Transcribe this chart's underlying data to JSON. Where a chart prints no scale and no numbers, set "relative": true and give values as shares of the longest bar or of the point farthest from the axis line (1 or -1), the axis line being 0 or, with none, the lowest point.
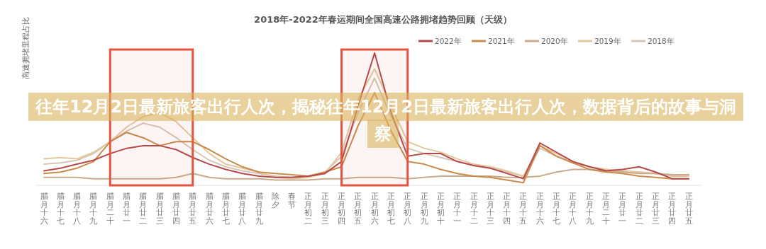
{
  "chart_data": {
    "type": "line",
    "title": "2018年-2022年春运期间全国高速公路拥堵趋势回顾（天级）",
    "ylabel": "高速拥堵里程占比",
    "relative": true,
    "legend": "top right",
    "marker": "none",
    "categories": [
      "腊月十六",
      "腊月十七",
      "腊月十八",
      "腊月十九",
      "腊月二十",
      "腊月廿一",
      "腊月廿二",
      "腊月廿三",
      "腊月廿四",
      "腊月廿五",
      "腊月廿六",
      "腊月廿七",
      "腊月廿八",
      "腊月廿九",
      "除夕",
      "春节",
      "正月初二",
      "正月初三",
      "正月初四",
      "正月初五",
      "正月初六",
      "正月初七",
      "正月初八",
      "正月初九",
      "正月初十",
      "正月十一",
      "正月十二",
      "正月十三",
      "正月十四",
      "正月十五",
      "正月十六",
      "正月十七",
      "正月十八",
      "正月十九",
      "正月二十",
      "正月廿一",
      "正月廿二",
      "正月廿三",
      "正月廿四",
      "正月廿五"
    ],
    "series": [
      {
        "name": "2018年",
        "color": "#d6c5b6",
        "values": [
          0.16,
          0.17,
          0.19,
          0.24,
          0.33,
          0.41,
          0.47,
          0.44,
          0.36,
          0.27,
          0.19,
          0.14,
          0.11,
          0.09,
          0.07,
          0.06,
          0.07,
          0.1,
          0.22,
          0.55,
          0.81,
          0.52,
          0.28,
          0.24,
          0.21,
          0.18,
          0.15,
          0.13,
          0.1,
          0.07,
          0.28,
          0.22,
          0.17,
          0.14,
          0.12,
          0.11,
          0.1,
          0.09,
          0.08,
          0.08
        ]
      },
      {
        "name": "2019年",
        "color": "#e3c79f",
        "values": [
          0.2,
          0.21,
          0.2,
          0.25,
          0.33,
          0.44,
          0.52,
          0.55,
          0.48,
          0.36,
          0.24,
          0.16,
          0.13,
          0.1,
          0.06,
          0.05,
          0.06,
          0.09,
          0.25,
          0.65,
          0.88,
          0.6,
          0.33,
          0.28,
          0.25,
          0.2,
          0.16,
          0.14,
          0.11,
          0.07,
          0.3,
          0.24,
          0.18,
          0.14,
          0.12,
          0.11,
          0.1,
          0.09,
          0.07,
          0.07
        ]
      },
      {
        "name": "2020年",
        "color": "#c9ab8a",
        "values": [
          0.06,
          0.06,
          0.06,
          0.05,
          0.05,
          0.05,
          0.05,
          0.05,
          0.06,
          0.09,
          0.06,
          0.05,
          0.05,
          0.05,
          0.04,
          0.04,
          0.04,
          0.05,
          0.05,
          0.06,
          0.06,
          0.06,
          0.05,
          0.06,
          0.07,
          0.07,
          0.07,
          0.07,
          0.06,
          0.06,
          0.07,
          0.1,
          0.12,
          0.12,
          0.11,
          0.1,
          0.09,
          0.09,
          0.08,
          0.08
        ]
      },
      {
        "name": "2021年",
        "color": "#c98a4b",
        "values": [
          0.09,
          0.1,
          0.13,
          0.18,
          0.33,
          0.4,
          0.36,
          0.3,
          0.33,
          0.33,
          0.27,
          0.2,
          0.14,
          0.1,
          0.09,
          0.08,
          0.07,
          0.1,
          0.14,
          0.45,
          0.7,
          0.41,
          0.18,
          0.16,
          0.12,
          0.09,
          0.07,
          0.06,
          0.04,
          0.02,
          0.3,
          0.22,
          0.17,
          0.12,
          0.1,
          0.09,
          0.07,
          0.06,
          0.05,
          0.05
        ]
      },
      {
        "name": "2022年",
        "color": "#b5484a",
        "values": [
          0.11,
          0.13,
          0.16,
          0.19,
          0.24,
          0.28,
          0.3,
          0.3,
          0.27,
          0.21,
          0.16,
          0.12,
          0.09,
          0.07,
          0.06,
          0.06,
          0.07,
          0.09,
          0.18,
          0.6,
          1.0,
          0.55,
          0.22,
          0.24,
          0.24,
          0.18,
          0.15,
          0.13,
          0.09,
          0.05,
          0.32,
          0.25,
          0.18,
          0.14,
          0.11,
          0.12,
          0.14,
          0.1,
          0.05,
          0.05
        ]
      }
    ],
    "bands": [
      {
        "axis": "x",
        "from": "腊月二十",
        "to": "腊月廿五",
        "color": "#e0553f"
      },
      {
        "axis": "x",
        "from": "正月初四",
        "to": "正月初八",
        "color": "#e0553f"
      }
    ],
    "annotations": [
      "往年12月2日最新旅客出行人次，揭秘往年12月2日最新旅客出行人次，数据背后的故事与洞察"
    ]
  }
}
